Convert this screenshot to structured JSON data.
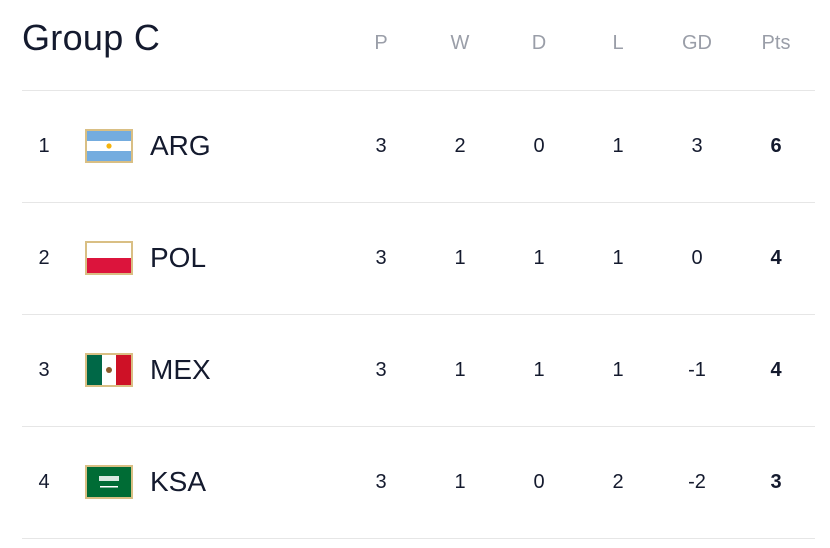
{
  "header": {
    "title": "Group C"
  },
  "table": {
    "columns": [
      "P",
      "W",
      "D",
      "L",
      "GD",
      "Pts"
    ],
    "rows": [
      {
        "rank": 1,
        "team": "ARG",
        "stats": [
          3,
          2,
          0,
          1,
          3,
          6
        ]
      },
      {
        "rank": 2,
        "team": "POL",
        "stats": [
          3,
          1,
          1,
          1,
          0,
          4
        ]
      },
      {
        "rank": 3,
        "team": "MEX",
        "stats": [
          3,
          1,
          1,
          1,
          -1,
          4
        ]
      },
      {
        "rank": 4,
        "team": "KSA",
        "stats": [
          3,
          1,
          0,
          2,
          -2,
          3
        ]
      }
    ]
  }
}
